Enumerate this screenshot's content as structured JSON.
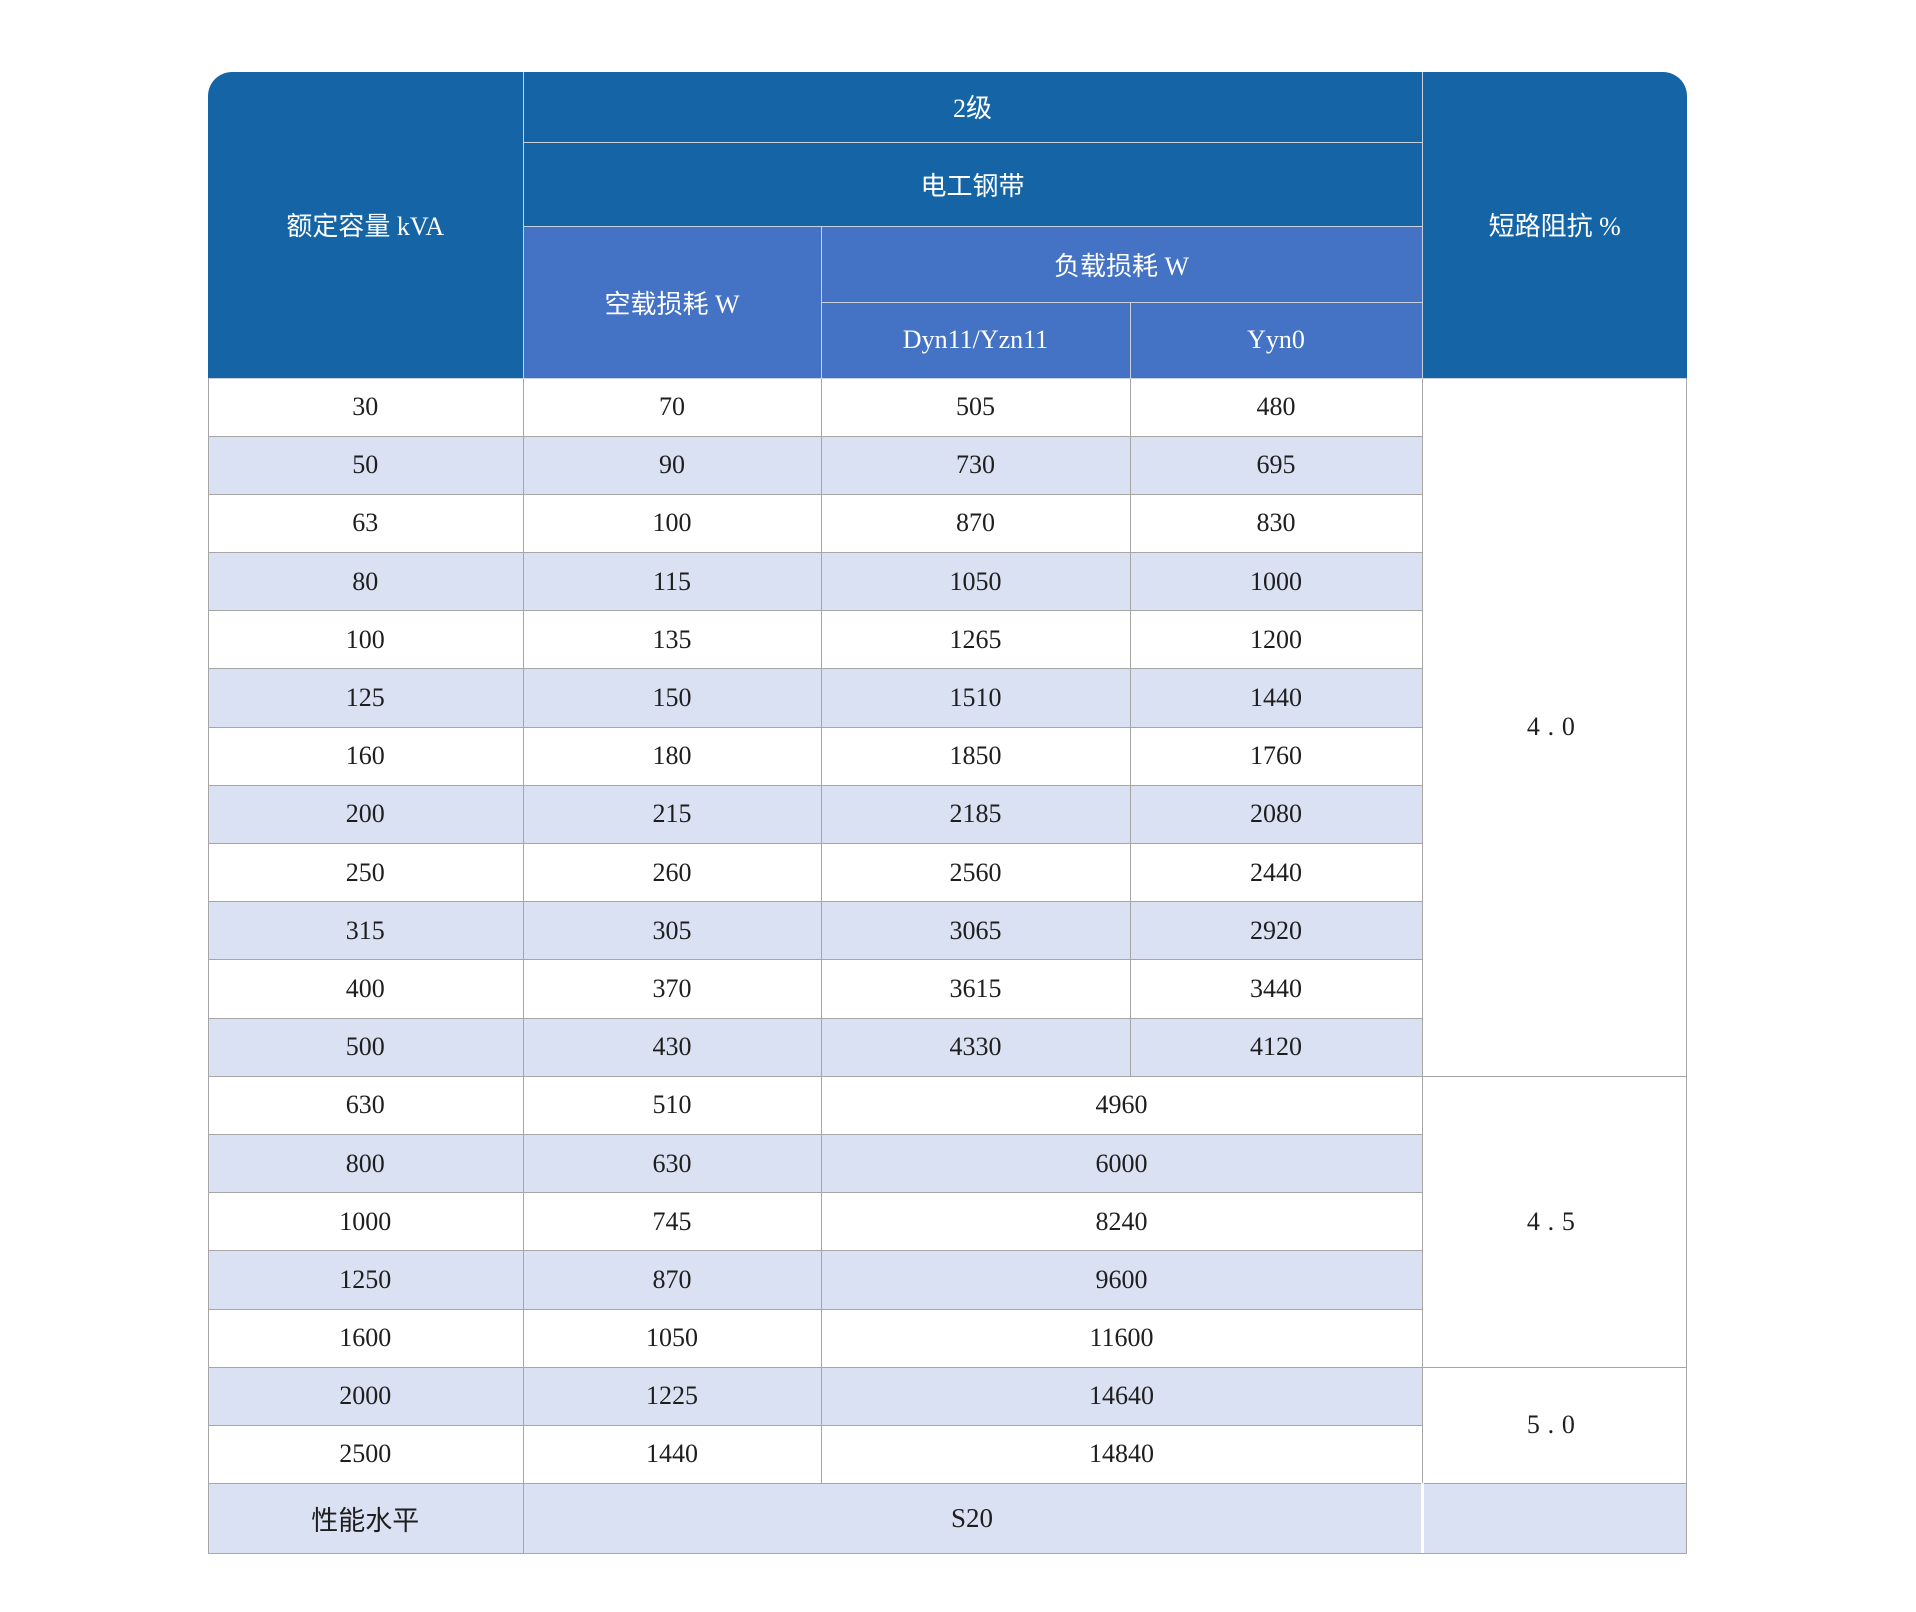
{
  "table": {
    "header": {
      "capacity": "额定容量 kVA",
      "level": "2级",
      "material": "电工钢带",
      "no_load_loss": "空载损耗 W",
      "load_loss": "负载损耗 W",
      "dyn": "Dyn11/Yzn11",
      "yyn": "Yyn0",
      "impedance": "短路阻抗 %"
    },
    "groups": [
      {
        "impedance": "4.0",
        "rows": [
          [
            "30",
            "70",
            "505",
            "480"
          ],
          [
            "50",
            "90",
            "730",
            "695"
          ],
          [
            "63",
            "100",
            "870",
            "830"
          ],
          [
            "80",
            "115",
            "1050",
            "1000"
          ],
          [
            "100",
            "135",
            "1265",
            "1200"
          ],
          [
            "125",
            "150",
            "1510",
            "1440"
          ],
          [
            "160",
            "180",
            "1850",
            "1760"
          ],
          [
            "200",
            "215",
            "2185",
            "2080"
          ],
          [
            "250",
            "260",
            "2560",
            "2440"
          ],
          [
            "315",
            "305",
            "3065",
            "2920"
          ],
          [
            "400",
            "370",
            "3615",
            "3440"
          ],
          [
            "500",
            "430",
            "4330",
            "4120"
          ]
        ]
      },
      {
        "impedance": "4.5",
        "rows": [
          [
            "630",
            "510",
            "4960"
          ],
          [
            "800",
            "630",
            "6000"
          ],
          [
            "1000",
            "745",
            "8240"
          ],
          [
            "1250",
            "870",
            "9600"
          ],
          [
            "1600",
            "1050",
            "11600"
          ]
        ]
      },
      {
        "impedance": "5.0",
        "rows": [
          [
            "2000",
            "1225",
            "14640"
          ],
          [
            "2500",
            "1440",
            "14840"
          ]
        ]
      }
    ],
    "footer": {
      "label": "性能水平",
      "value": "S20"
    },
    "colors": {
      "header_dark_blue": "#1565A6",
      "header_mid_blue": "#4472C4",
      "stripe_lavender": "#D9E1F2",
      "grid_gray": "#A6A6A6",
      "header_text": "#FFFFFF",
      "body_text": "#1E1E1E"
    }
  }
}
